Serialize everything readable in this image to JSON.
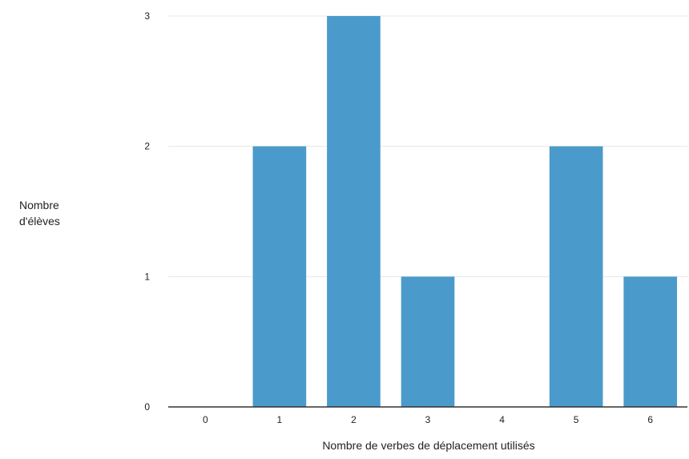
{
  "chart_data": {
    "type": "bar",
    "title": "",
    "xlabel": "Nombre de verbes de déplacement utilisés",
    "ylabel_line1": "Nombre",
    "ylabel_line2": "d'élèves",
    "categories": [
      "0",
      "1",
      "2",
      "3",
      "4",
      "5",
      "6"
    ],
    "values": [
      0,
      2,
      3,
      1,
      0,
      2,
      1
    ],
    "ylim": [
      0,
      3
    ],
    "yticks": [
      "0",
      "1",
      "2",
      "3"
    ],
    "grid": true,
    "bar_color": "#4a9bcb"
  }
}
